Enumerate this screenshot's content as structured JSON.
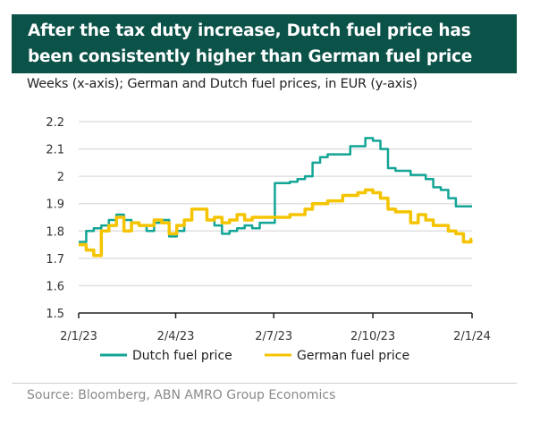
{
  "title": "After the tax duty increase, Dutch fuel price has been consistently higher than German fuel price",
  "subtitle": "Weeks (x-axis); German and Dutch fuel prices, in EUR (y-axis)",
  "source": "Source: Bloomberg, ABN AMRO Group Economics",
  "chart_data": {
    "type": "line",
    "step": true,
    "title": "After the tax duty increase, Dutch fuel price has been consistently higher than German fuel price",
    "xlabel": "Weeks",
    "ylabel": "EUR",
    "ylim": [
      1.5,
      2.2
    ],
    "yticks": [
      "2.2",
      "2.1",
      "2",
      "1.9",
      "1.8",
      "1.7",
      "1.6",
      "1.5"
    ],
    "xlim": [
      "2023-01-02",
      "2024-01-02"
    ],
    "xticks": [
      {
        "date": "2023-01-02",
        "label": "2/1/23"
      },
      {
        "date": "2023-04-02",
        "label": "2/4/23"
      },
      {
        "date": "2023-07-02",
        "label": "2/7/23"
      },
      {
        "date": "2023-10-02",
        "label": "2/10/23"
      },
      {
        "date": "2024-01-02",
        "label": "2/1/24"
      }
    ],
    "grid": "horizontal",
    "legend": "bottom",
    "x": [
      "2023-01-02",
      "2023-01-09",
      "2023-01-16",
      "2023-01-23",
      "2023-01-30",
      "2023-02-06",
      "2023-02-13",
      "2023-02-20",
      "2023-02-27",
      "2023-03-06",
      "2023-03-13",
      "2023-03-20",
      "2023-03-27",
      "2023-04-03",
      "2023-04-10",
      "2023-04-17",
      "2023-04-24",
      "2023-05-01",
      "2023-05-08",
      "2023-05-15",
      "2023-05-22",
      "2023-05-29",
      "2023-06-05",
      "2023-06-12",
      "2023-06-19",
      "2023-06-26",
      "2023-07-03",
      "2023-07-10",
      "2023-07-17",
      "2023-07-24",
      "2023-07-31",
      "2023-08-07",
      "2023-08-14",
      "2023-08-21",
      "2023-08-28",
      "2023-09-04",
      "2023-09-11",
      "2023-09-18",
      "2023-09-25",
      "2023-10-02",
      "2023-10-09",
      "2023-10-16",
      "2023-10-23",
      "2023-10-30",
      "2023-11-06",
      "2023-11-13",
      "2023-11-20",
      "2023-11-27",
      "2023-12-04",
      "2023-12-11",
      "2023-12-18",
      "2023-12-25",
      "2024-01-01"
    ],
    "series": [
      {
        "name": "Dutch fuel price",
        "color": "#13a595",
        "values": [
          1.76,
          1.8,
          1.81,
          1.82,
          1.84,
          1.86,
          1.84,
          1.83,
          1.82,
          1.8,
          1.83,
          1.84,
          1.78,
          1.8,
          1.84,
          1.88,
          1.88,
          1.84,
          1.82,
          1.79,
          1.8,
          1.81,
          1.82,
          1.81,
          1.83,
          1.83,
          1.975,
          1.975,
          1.98,
          1.99,
          2.0,
          2.05,
          2.07,
          2.08,
          2.08,
          2.08,
          2.11,
          2.11,
          2.14,
          2.13,
          2.1,
          2.03,
          2.02,
          2.02,
          2.005,
          2.005,
          1.99,
          1.96,
          1.95,
          1.92,
          1.89,
          1.89,
          1.89
        ]
      },
      {
        "name": "German fuel price",
        "color": "#f5c400",
        "values": [
          1.75,
          1.73,
          1.71,
          1.8,
          1.82,
          1.85,
          1.8,
          1.83,
          1.82,
          1.82,
          1.84,
          1.83,
          1.79,
          1.82,
          1.84,
          1.88,
          1.88,
          1.84,
          1.85,
          1.83,
          1.84,
          1.86,
          1.84,
          1.85,
          1.85,
          1.85,
          1.85,
          1.85,
          1.86,
          1.86,
          1.88,
          1.9,
          1.9,
          1.91,
          1.91,
          1.93,
          1.93,
          1.94,
          1.95,
          1.94,
          1.92,
          1.88,
          1.87,
          1.87,
          1.83,
          1.86,
          1.84,
          1.82,
          1.82,
          1.8,
          1.79,
          1.76,
          1.77
        ]
      }
    ]
  }
}
